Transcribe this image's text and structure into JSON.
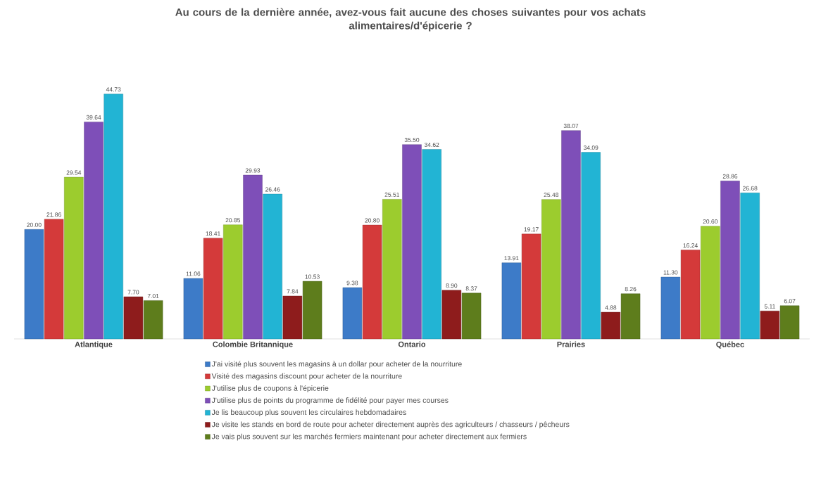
{
  "chart_data": {
    "type": "bar",
    "title": "Au cours de la dernière année, avez-vous fait aucune des choses suivantes pour vos achats alimentaires/d'épicerie ?",
    "categories": [
      "Atlantique",
      "Colombie Britannique",
      "Ontario",
      "Prairies",
      "Québec"
    ],
    "series": [
      {
        "name": "J'ai visité plus souvent les magasins à un dollar pour acheter de la nourriture",
        "color": "#3d7bc8",
        "values": [
          20.0,
          11.06,
          9.38,
          13.91,
          11.3
        ],
        "value_labels": [
          "20.00",
          "11.06",
          "9.38",
          "13.91",
          "11.30"
        ]
      },
      {
        "name": "Visité des magasins discount pour acheter de la nourriture",
        "color": "#d43a3a",
        "values": [
          21.86,
          18.41,
          20.8,
          19.17,
          16.24
        ],
        "value_labels": [
          "21.86",
          "18.41",
          "20.80",
          "19.17",
          "16.24"
        ]
      },
      {
        "name": "J'utilise plus de coupons à l'épicerie",
        "color": "#9ccc2e",
        "values": [
          29.54,
          20.85,
          25.51,
          25.48,
          20.6
        ],
        "value_labels": [
          "29.54",
          "20.85",
          "25.51",
          "25.48",
          "20.60"
        ]
      },
      {
        "name": "J'utilise plus de points du programme de fidélité pour payer mes courses",
        "color": "#7e4fb8",
        "values": [
          39.64,
          29.93,
          35.5,
          38.07,
          28.86
        ],
        "value_labels": [
          "39.64",
          "29.93",
          "35.50",
          "38.07",
          "28.86"
        ]
      },
      {
        "name": "Je lis beaucoup plus souvent les circulaires hebdomadaires",
        "color": "#22b4d4",
        "values": [
          44.73,
          26.46,
          34.62,
          34.09,
          26.68
        ],
        "value_labels": [
          "44.73",
          "26.46",
          "34.62",
          "34.09",
          "26.68"
        ]
      },
      {
        "name": "Je visite les stands en bord de route pour acheter directement auprès des agriculteurs / chasseurs / pêcheurs",
        "color": "#8e1c1c",
        "values": [
          7.7,
          7.84,
          8.9,
          4.88,
          5.11
        ],
        "value_labels": [
          "7.70",
          "7.84",
          "8.90",
          "4.88",
          "5.11"
        ]
      },
      {
        "name": "Je vais plus souvent sur les marchés fermiers maintenant pour acheter directement aux fermiers",
        "color": "#5e7d1c",
        "values": [
          7.01,
          10.53,
          8.37,
          8.26,
          6.07
        ],
        "value_labels": [
          "7.01",
          "10.53",
          "8.37",
          "8.26",
          "6.07"
        ]
      }
    ],
    "legend": "bottom"
  }
}
